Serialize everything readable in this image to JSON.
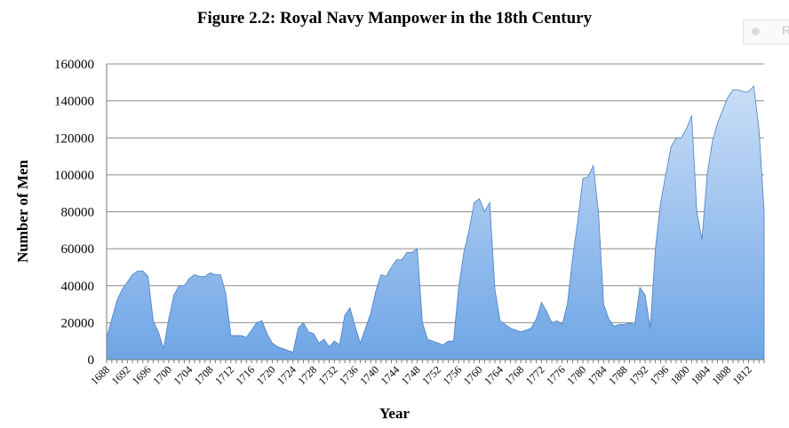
{
  "chart_data": {
    "type": "area",
    "title": "Figure 2.2: Royal Navy Manpower in the 18th Century",
    "xlabel": "Year",
    "ylabel": "Number of Men",
    "ylim": [
      0,
      160000
    ],
    "yticks": [
      0,
      20000,
      40000,
      60000,
      80000,
      100000,
      120000,
      140000,
      160000
    ],
    "xlim": [
      1688,
      1815
    ],
    "xticks": [
      1688,
      1692,
      1696,
      1700,
      1704,
      1708,
      1712,
      1716,
      1720,
      1724,
      1728,
      1732,
      1736,
      1740,
      1744,
      1748,
      1752,
      1756,
      1760,
      1764,
      1768,
      1772,
      1776,
      1780,
      1784,
      1788,
      1792,
      1796,
      1800,
      1804,
      1808,
      1812
    ],
    "grid": true,
    "legend": "top-right",
    "legend_label": "R",
    "fill_color": "#6fa5e6",
    "fill_color_light": "#c9def6",
    "series": [
      {
        "x": [
          1688,
          1689,
          1690,
          1691,
          1692,
          1693,
          1694,
          1695,
          1696,
          1697,
          1698,
          1699,
          1700,
          1701,
          1702,
          1703,
          1704,
          1705,
          1706,
          1707,
          1708,
          1709,
          1710,
          1711,
          1712,
          1713,
          1714,
          1715,
          1716,
          1717,
          1718,
          1719,
          1720,
          1721,
          1722,
          1723,
          1724,
          1725,
          1726,
          1727,
          1728,
          1729,
          1730,
          1731,
          1732,
          1733,
          1734,
          1735,
          1736,
          1737,
          1738,
          1739,
          1740,
          1741,
          1742,
          1743,
          1744,
          1745,
          1746,
          1747,
          1748,
          1749,
          1750,
          1751,
          1752,
          1753,
          1754,
          1755,
          1756,
          1757,
          1758,
          1759,
          1760,
          1761,
          1762,
          1763,
          1764,
          1765,
          1766,
          1767,
          1768,
          1769,
          1770,
          1771,
          1772,
          1773,
          1774,
          1775,
          1776,
          1777,
          1778,
          1779,
          1780,
          1781,
          1782,
          1783,
          1784,
          1785,
          1786,
          1787,
          1788,
          1789,
          1790,
          1791,
          1792,
          1793,
          1794,
          1795,
          1796,
          1797,
          1798,
          1799,
          1800,
          1801,
          1802,
          1803,
          1804,
          1805,
          1806,
          1807,
          1808,
          1809,
          1810,
          1811,
          1812,
          1813,
          1814,
          1815
        ],
        "values": [
          12000,
          22000,
          32000,
          38000,
          42000,
          46000,
          48000,
          48000,
          45000,
          21000,
          15000,
          6000,
          22000,
          35000,
          40000,
          40000,
          44000,
          46000,
          45000,
          45000,
          47000,
          46000,
          46000,
          36000,
          13000,
          13000,
          13000,
          12000,
          16000,
          20000,
          21000,
          14000,
          9000,
          7000,
          6000,
          5000,
          4000,
          17000,
          20000,
          15000,
          14000,
          9000,
          11000,
          7000,
          10000,
          8000,
          24000,
          28000,
          18000,
          9000,
          17000,
          25000,
          37000,
          46000,
          45000,
          50000,
          54000,
          54000,
          58000,
          58000,
          60000,
          20000,
          11000,
          10000,
          9000,
          8000,
          10000,
          10000,
          39000,
          58000,
          70000,
          85000,
          87000,
          80000,
          85000,
          38000,
          21000,
          19000,
          17000,
          16000,
          15000,
          16000,
          17000,
          22000,
          31000,
          26000,
          20000,
          21000,
          19000,
          30000,
          55000,
          75000,
          98000,
          99000,
          105000,
          80000,
          30000,
          22000,
          18000,
          19000,
          19000,
          20000,
          19000,
          39000,
          35000,
          17000,
          60000,
          85000,
          100000,
          115000,
          120000,
          120000,
          125000,
          132000,
          80000,
          65000,
          100000,
          118000,
          128000,
          135000,
          142000,
          146000,
          146000,
          145000,
          145000,
          148000,
          125000,
          80000
        ]
      }
    ]
  }
}
